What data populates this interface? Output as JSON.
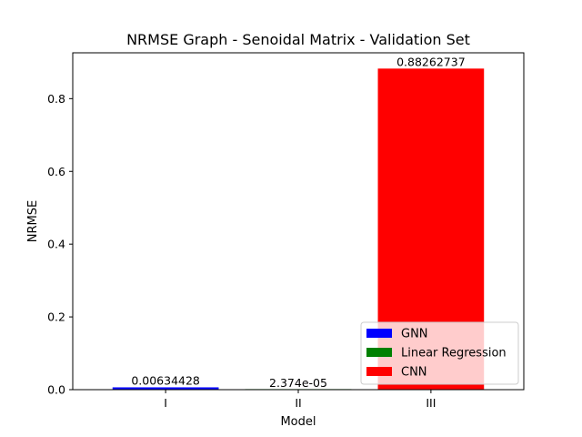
{
  "chart_data": {
    "type": "bar",
    "title": "NRMSE Graph - Senoidal Matrix - Validation Set",
    "xlabel": "Model",
    "ylabel": "NRMSE",
    "categories": [
      "I",
      "II",
      "III"
    ],
    "values": [
      0.00634428,
      2.374e-05,
      0.88262737
    ],
    "value_labels": [
      "0.00634428",
      "2.374e-05",
      "0.88262737"
    ],
    "bar_colors": [
      "#0000ff",
      "#008000",
      "#ff0000"
    ],
    "series": [
      {
        "name": "GNN",
        "color": "#0000ff"
      },
      {
        "name": "Linear Regression",
        "color": "#008000"
      },
      {
        "name": "CNN",
        "color": "#ff0000"
      }
    ],
    "ylim": [
      0,
      0.926
    ],
    "yticks": [
      0.0,
      0.2,
      0.4,
      0.6,
      0.8
    ],
    "ytick_labels": [
      "0.0",
      "0.2",
      "0.4",
      "0.6",
      "0.8"
    ],
    "grid": false,
    "legend_position": "lower-right"
  }
}
